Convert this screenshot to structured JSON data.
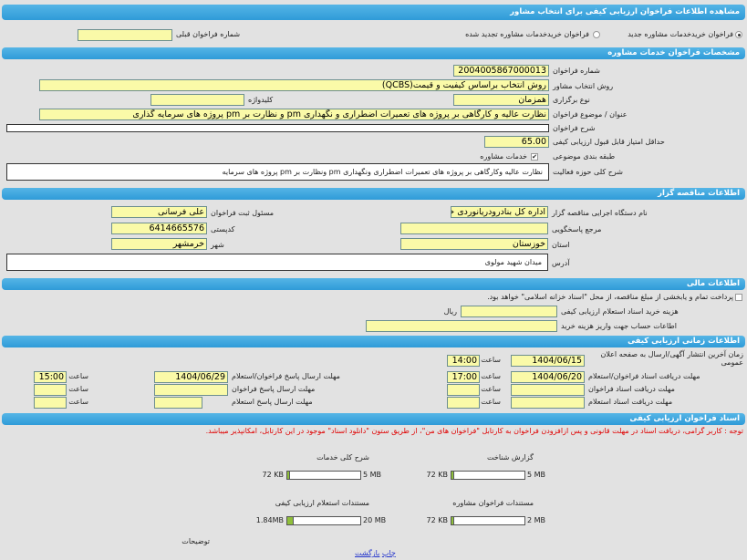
{
  "title": "مشاهده اطلاعات فراخوان ارزیابی کیفی برای انتخاب مشاور",
  "call_type": {
    "option_new": "فراخوان خریدخدمات مشاوره جدید",
    "option_renewed": "فراخوان خریدخدمات مشاوره تجدید شده",
    "selected": "new",
    "previous_number_label": "شماره فراخوان قبلی",
    "previous_number": ""
  },
  "specs": {
    "header": "مشخصات فراخوان خدمات مشاوره",
    "number_label": "شماره فراخوان",
    "number": "2004005867000013",
    "method_label": "روش انتخاب مشاور",
    "method": "روش انتخاب براساس کیفیت و قیمت(QCBS)",
    "holding_label": "نوع برگزاری",
    "holding": "همزمان",
    "keyword_label": "کلیدواژه",
    "keyword": "",
    "subject_label": "عنوان / موضوع فراخوان",
    "subject": "نظارت عالیه و کارگاهی بر پروژه های تعمیرات اضطراری و نگهداری pm و نظارت بر pm پروژه های سرمایه گذاری",
    "description_label": "شرح فراخوان",
    "description": "",
    "min_score_label": "حداقل امتیاز قابل قبول ارزیابی کیفی",
    "min_score": "65.00",
    "category_label": "طبقه بندی موضوعی",
    "category": "خدمات مشاوره",
    "scope_label": "شرح کلی حوزه فعالیت",
    "scope": "نظارت عالیه وکارگاهی بر پروژه های تعمیرات اضطراری ونگهداری pm ونظارت بر pm پروژه های سرمایه"
  },
  "tenderer": {
    "header": "اطلاعات مناقصه گزار",
    "org_label": "نام دستگاه اجرایی مناقصه گزار",
    "org": "اداره کل بنادرودریانوردی خره",
    "registrar_label": "مسئول ثبت فراخوان",
    "registrar": "علی  فرسانی",
    "ref_label": "مرجع پاسخگویی",
    "ref": "",
    "postal_label": "کدپستی",
    "postal": "6414665576",
    "province_label": "استان",
    "province": "خوزستان",
    "city_label": "شهر",
    "city": "خرمشهر",
    "address_label": "آدرس",
    "address": "میدان شهید  مولوی"
  },
  "finance": {
    "header": "اطلاعات مالی",
    "treasury_text": "پرداخت تمام و یابخشی  از  مبلغ مناقصه،  از محل \"اسناد خزانه اسلامی\" خواهد بود.",
    "doc_cost_label": "هزینه خرید اسناد استعلام ارزیابی کیفی",
    "doc_cost": "",
    "currency": "ریال",
    "account_label": "اطاعات حساب جهت واریز هزینه خرید",
    "account": ""
  },
  "timing": {
    "header": "اطلاعات زمانی ارزیابی کیفی",
    "time_label": "ساعت",
    "publish_label": "زمان آخرین انتشار آگهی/ارسال به صفحه اعلان عمومی",
    "publish_date": "1404/06/15",
    "publish_time": "14:00",
    "receive_label": "مهلت دریافت اسناد فراخوان/استعلام",
    "receive_date": "1404/06/20",
    "receive_time": "17:00",
    "receive_call_label": "مهلت دریافت اسناد فراخوان",
    "receive_inq_label": "مهلت دریافت اسناد استعلام",
    "send_label": "مهلت ارسال پاسخ فراخوان/استعلام",
    "send_date": "1404/06/29",
    "send_time": "15:00",
    "send_call_label": "مهلت ارسال پاسخ فراخوان",
    "send_inq_label": "مهلت ارسال پاسخ استعلام"
  },
  "documents": {
    "header": "اسناد فراخوان ارزیابی کیفی",
    "notice": "توجه : کاربر گرامی، دریافت اسناد  در مهلت قانونی و پس ازافزودن فراخوان به کارتابل \"فراخوان های من\"،  از طریق  ستون  \"دانلود اسناد\" موجود  در این کارتابل، امکانپذیر میباشد.",
    "files": [
      {
        "title": "گزارش شناخت",
        "size": "72 KB",
        "max": "5 MB",
        "fraction": 0.014
      },
      {
        "title": "شرح کلی خدمات",
        "size": "72 KB",
        "max": "5 MB",
        "fraction": 0.014
      },
      {
        "title": "مستندات فراخوان مشاوره",
        "size": "72 KB",
        "max": "2 MB",
        "fraction": 0.035
      },
      {
        "title": "مستندات استعلام ارزیابی کیفی",
        "size": "1.84MB",
        "max": "20 MB",
        "fraction": 0.092
      }
    ],
    "notes_label": "توضیحات"
  },
  "footer": {
    "print": "چاپ",
    "back": "بازگشت"
  }
}
